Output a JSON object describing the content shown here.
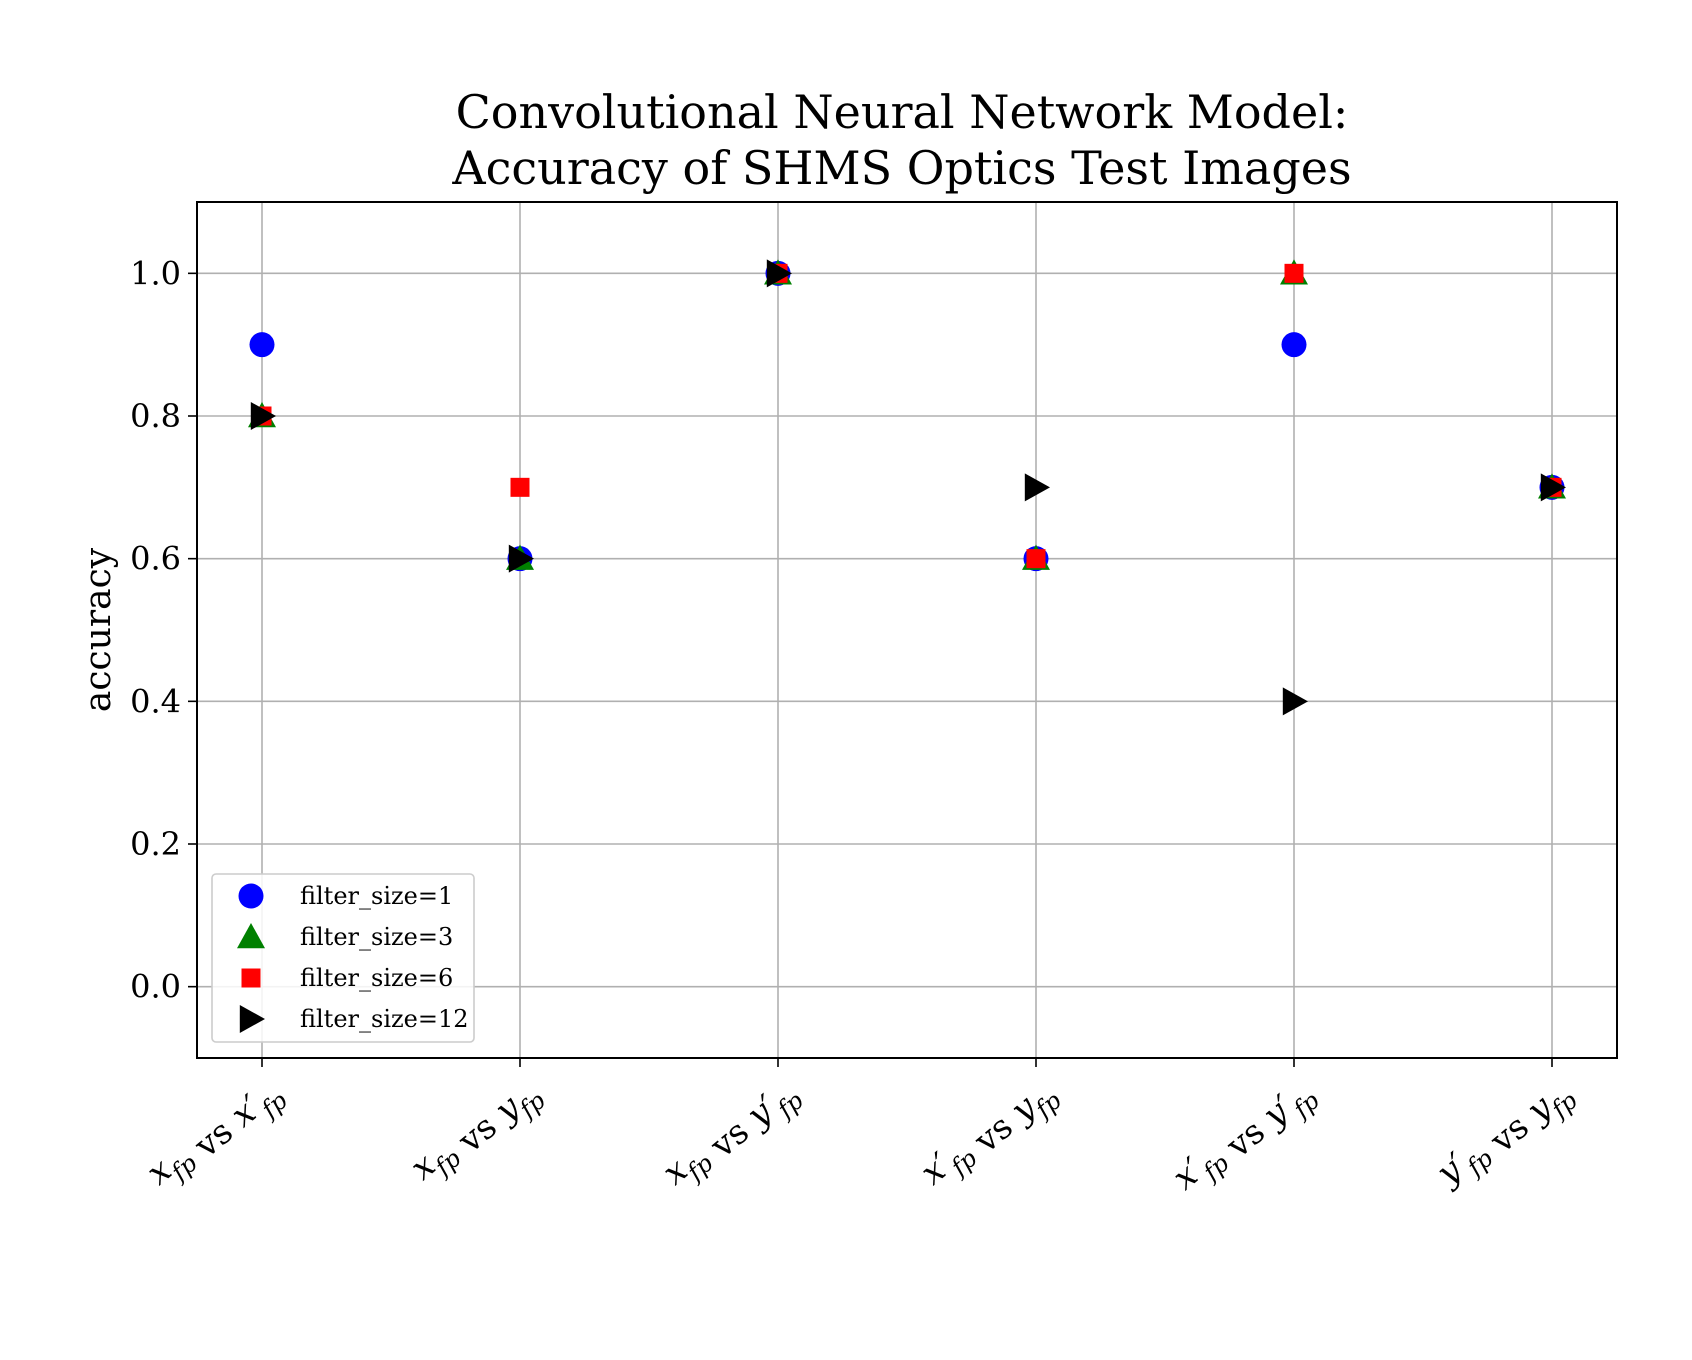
{
  "chart_data": {
    "type": "scatter",
    "title": "Convolutional Neural Network Model:",
    "subtitle": "Accuracy of SHMS Optics Test Images",
    "ylabel": "accuracy",
    "xlabel": "",
    "ylim": [
      -0.1,
      1.1
    ],
    "yticks": [
      0.0,
      0.2,
      0.4,
      0.6,
      0.8,
      1.0
    ],
    "ytick_labels": [
      "0.0",
      "0.2",
      "0.4",
      "0.6",
      "0.8",
      "1.0"
    ],
    "grid": true,
    "legend_position": "bottom-left",
    "categories": [
      "x_fp vs x'_fp",
      "x_fp vs y_fp",
      "x_fp vs y'_fp",
      "x'_fp vs y_fp",
      "x'_fp vs y'_fp",
      "y'_fp vs y_fp"
    ],
    "series": [
      {
        "name": "filter_size=1",
        "color": "#0000ff",
        "marker": "circle",
        "values": [
          0.9,
          0.6,
          1.0,
          0.6,
          0.9,
          0.7
        ]
      },
      {
        "name": "filter_size=3",
        "color": "#008000",
        "marker": "triangle-up",
        "values": [
          0.8,
          0.6,
          1.0,
          0.6,
          1.0,
          0.7
        ]
      },
      {
        "name": "filter_size=6",
        "color": "#ff0000",
        "marker": "square",
        "values": [
          0.8,
          0.7,
          1.0,
          0.6,
          1.0,
          0.7
        ]
      },
      {
        "name": "filter_size=12",
        "color": "#000000",
        "marker": "triangle-right",
        "values": [
          0.8,
          0.6,
          1.0,
          0.7,
          0.4,
          0.7
        ]
      }
    ]
  }
}
